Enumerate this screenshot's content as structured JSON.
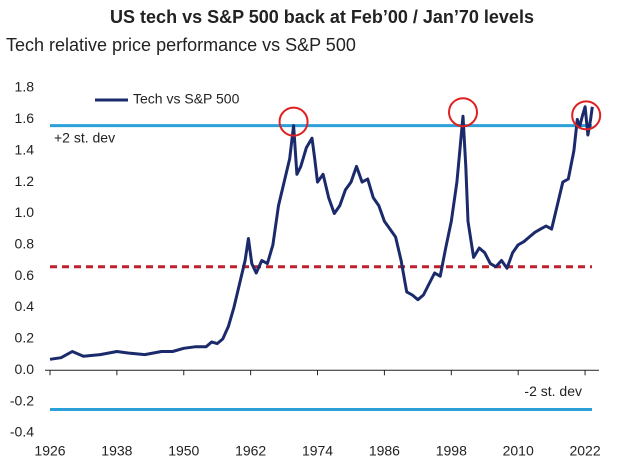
{
  "chart_data": {
    "type": "line",
    "title": "US tech vs S&P 500 back at Feb’00 / Jan’70 levels",
    "subtitle": "Tech relative price performance vs S&P 500",
    "xlim": [
      1926,
      2024.5
    ],
    "xticks": [
      1926,
      1938,
      1950,
      1962,
      1974,
      1986,
      1998,
      2010,
      2022
    ],
    "ylim": [
      -0.4,
      1.8
    ],
    "yticks": [
      {
        "value": -0.4,
        "label": "-0.4"
      },
      -0.2,
      {
        "value": 0,
        "label": "0.0"
      },
      0.2,
      0.4,
      0.6,
      0.8,
      {
        "value": 1,
        "label": "1.0"
      },
      1.2,
      1.4,
      1.6,
      1.8
    ],
    "legend": "upper left",
    "x": [
      1926,
      1928,
      1929,
      1930,
      1932,
      1935,
      1938,
      1940,
      1943,
      1946,
      1948,
      1950,
      1952,
      1954,
      1955,
      1956,
      1957,
      1958,
      1959,
      1960,
      1961,
      1961.6,
      1962.2,
      1963,
      1964,
      1965,
      1966,
      1967,
      1968,
      1969,
      1969.7,
      1970.3,
      1971,
      1972,
      1973,
      1973.5,
      1974,
      1975,
      1976,
      1977,
      1978,
      1979,
      1980,
      1981,
      1982,
      1983,
      1984,
      1985,
      1986,
      1987,
      1988,
      1989,
      1990,
      1991,
      1992,
      1993,
      1994,
      1995,
      1996,
      1997,
      1998,
      1999,
      2000.1,
      2000.6,
      2001,
      2002,
      2003,
      2004,
      2005,
      2006,
      2007,
      2008,
      2009,
      2010,
      2011,
      2012,
      2013,
      2014,
      2015,
      2016,
      2017,
      2018,
      2019,
      2020,
      2020.6,
      2021,
      2021.5,
      2022,
      2022.5,
      2023,
      2023.3
    ],
    "series": [
      {
        "name": "Tech vs  S&P 500",
        "color": "#1b2a6b",
        "values": [
          0.07,
          0.08,
          0.1,
          0.12,
          0.09,
          0.1,
          0.12,
          0.11,
          0.1,
          0.12,
          0.12,
          0.14,
          0.15,
          0.15,
          0.18,
          0.17,
          0.2,
          0.28,
          0.4,
          0.55,
          0.7,
          0.84,
          0.68,
          0.62,
          0.7,
          0.68,
          0.8,
          1.05,
          1.2,
          1.35,
          1.56,
          1.25,
          1.3,
          1.42,
          1.48,
          1.35,
          1.2,
          1.25,
          1.1,
          1.0,
          1.05,
          1.15,
          1.2,
          1.3,
          1.2,
          1.22,
          1.1,
          1.05,
          0.95,
          0.9,
          0.85,
          0.7,
          0.5,
          0.48,
          0.45,
          0.48,
          0.55,
          0.62,
          0.6,
          0.78,
          0.95,
          1.2,
          1.62,
          1.3,
          0.95,
          0.72,
          0.78,
          0.75,
          0.68,
          0.66,
          0.7,
          0.65,
          0.75,
          0.8,
          0.82,
          0.85,
          0.88,
          0.9,
          0.92,
          0.9,
          1.05,
          1.2,
          1.22,
          1.4,
          1.6,
          1.55,
          1.62,
          1.68,
          1.5,
          1.6,
          1.68
        ]
      }
    ],
    "reference_lines": [
      {
        "value": 1.56,
        "label": "+2 st. dev",
        "color": "#2ca0d8"
      },
      {
        "value": 0.66,
        "color": "#c0202e",
        "dashed": true
      },
      {
        "value": -0.25,
        "label": "-2 st. dev",
        "color": "#2ca0d8"
      }
    ],
    "highlights": [
      {
        "x": 1969.7,
        "y": 1.56
      },
      {
        "x": 2000.1,
        "y": 1.62
      },
      {
        "x": 2022.2,
        "y": 1.6
      }
    ],
    "highlight_color": "#e02020"
  }
}
